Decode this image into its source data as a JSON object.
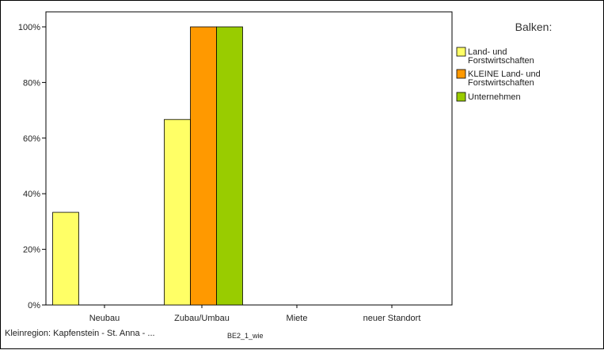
{
  "chart_data": {
    "type": "bar",
    "categories": [
      "Neubau",
      "Zubau/Umbau",
      "Miete",
      "neuer Standort"
    ],
    "series": [
      {
        "name": "Land- und\nForstwirtschaften",
        "color": "#ffff66",
        "values": [
          33.3,
          66.7,
          0,
          0
        ]
      },
      {
        "name": "KLEINE Land- und\nForstwirtschaften",
        "color": "#ff9900",
        "values": [
          0,
          100,
          0,
          0
        ]
      },
      {
        "name": "Unternehmen",
        "color": "#99cc00",
        "values": [
          0,
          100,
          0,
          0
        ]
      }
    ],
    "ylim": [
      0,
      100
    ],
    "yticks": [
      "0%",
      "20%",
      "40%",
      "60%",
      "80%",
      "100%"
    ],
    "ytick_values": [
      0,
      20,
      40,
      60,
      80,
      100
    ],
    "grid": false,
    "legend_title": "Balken:",
    "legend_position": "right"
  },
  "footer": {
    "region": "Kleinregion: Kapfenstein - St. Anna - ...",
    "code": "BE2_1_wie"
  }
}
